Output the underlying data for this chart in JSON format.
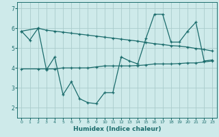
{
  "xlabel": "Humidex (Indice chaleur)",
  "bg_color": "#ceeaea",
  "grid_color": "#aacccc",
  "line_color": "#1a6b6b",
  "xlim": [
    -0.5,
    23.5
  ],
  "ylim": [
    1.5,
    7.3
  ],
  "yticks": [
    2,
    3,
    4,
    5,
    6,
    7
  ],
  "xticks": [
    0,
    1,
    2,
    3,
    4,
    5,
    6,
    7,
    8,
    9,
    10,
    11,
    12,
    13,
    14,
    15,
    16,
    17,
    18,
    19,
    20,
    21,
    22,
    23
  ],
  "line1_x": [
    0,
    1,
    2,
    3,
    4,
    5,
    6,
    7,
    8,
    9,
    10,
    11,
    12,
    13,
    14,
    15,
    16,
    17,
    18,
    19,
    20,
    21,
    22,
    23
  ],
  "line1_y": [
    5.85,
    5.4,
    6.0,
    3.9,
    4.55,
    2.65,
    3.3,
    2.45,
    2.25,
    2.2,
    2.75,
    2.75,
    4.55,
    4.35,
    4.2,
    5.5,
    6.7,
    6.7,
    5.3,
    5.3,
    5.85,
    6.3,
    4.35,
    4.4
  ],
  "line2_x": [
    0,
    2,
    3,
    4,
    5,
    6,
    7,
    8,
    9,
    10,
    11,
    12,
    13,
    14,
    15,
    16,
    17,
    18,
    19,
    20,
    21,
    22,
    23
  ],
  "line2_y": [
    5.85,
    6.0,
    5.9,
    5.85,
    5.8,
    5.75,
    5.7,
    5.65,
    5.6,
    5.55,
    5.5,
    5.45,
    5.4,
    5.35,
    5.28,
    5.22,
    5.18,
    5.12,
    5.1,
    5.05,
    4.98,
    4.93,
    4.85
  ],
  "line3_x": [
    0,
    2,
    3,
    4,
    5,
    6,
    7,
    8,
    9,
    10,
    11,
    12,
    13,
    14,
    15,
    16,
    17,
    18,
    19,
    20,
    21,
    22,
    23
  ],
  "line3_y": [
    3.95,
    3.95,
    3.95,
    3.95,
    4.0,
    4.0,
    4.0,
    4.0,
    4.05,
    4.1,
    4.1,
    4.1,
    4.1,
    4.12,
    4.15,
    4.2,
    4.2,
    4.2,
    4.22,
    4.25,
    4.25,
    4.3,
    4.35
  ]
}
